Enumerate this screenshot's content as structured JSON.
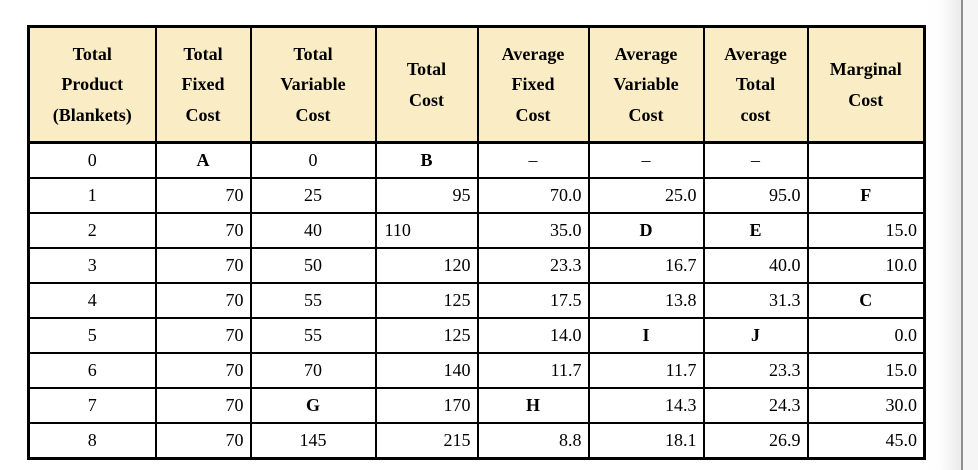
{
  "document": {
    "background": "#ffffff",
    "page_edge_line_color": "#8f8f8f",
    "page_edge_right_bg": "#f5f5f5"
  },
  "table": {
    "header_bg": "#FAEDC6",
    "border_color": "#000000",
    "text_color": "#000000",
    "columns": [
      {
        "id": "total-product-blankets",
        "lines": [
          "Total",
          "Product",
          "(Blankets)"
        ]
      },
      {
        "id": "total-fixed-cost",
        "lines": [
          "Total",
          "Fixed",
          "Cost"
        ]
      },
      {
        "id": "total-variable-cost",
        "lines": [
          "Total",
          "Variable",
          "Cost"
        ]
      },
      {
        "id": "total-cost",
        "lines": [
          "Total",
          "Cost"
        ]
      },
      {
        "id": "average-fixed-cost",
        "lines": [
          "Average",
          "Fixed",
          "Cost"
        ]
      },
      {
        "id": "average-variable-cost",
        "lines": [
          "Average",
          "Variable",
          "Cost"
        ]
      },
      {
        "id": "average-total-cost",
        "lines": [
          "Average",
          "Total",
          "cost"
        ]
      },
      {
        "id": "marginal-cost",
        "lines": [
          "Marginal",
          "Cost"
        ]
      }
    ],
    "rows": [
      [
        {
          "t": "0",
          "a": "c"
        },
        {
          "t": "A",
          "a": "c",
          "b": true
        },
        {
          "t": "0",
          "a": "c"
        },
        {
          "t": "B",
          "a": "c",
          "b": true
        },
        {
          "t": "–",
          "a": "c"
        },
        {
          "t": "–",
          "a": "c"
        },
        {
          "t": "–",
          "a": "c"
        },
        {
          "t": "",
          "a": "c"
        }
      ],
      [
        {
          "t": "1",
          "a": "c"
        },
        {
          "t": "70",
          "a": "r"
        },
        {
          "t": "25",
          "a": "c"
        },
        {
          "t": "95",
          "a": "r"
        },
        {
          "t": "70.0",
          "a": "r"
        },
        {
          "t": "25.0",
          "a": "r"
        },
        {
          "t": "95.0",
          "a": "r"
        },
        {
          "t": "F",
          "a": "c",
          "b": true
        }
      ],
      [
        {
          "t": "2",
          "a": "c"
        },
        {
          "t": "70",
          "a": "r"
        },
        {
          "t": "40",
          "a": "c"
        },
        {
          "t": "110",
          "a": "l"
        },
        {
          "t": "35.0",
          "a": "r"
        },
        {
          "t": "D",
          "a": "c",
          "b": true
        },
        {
          "t": "E",
          "a": "c",
          "b": true
        },
        {
          "t": "15.0",
          "a": "r"
        }
      ],
      [
        {
          "t": "3",
          "a": "c"
        },
        {
          "t": "70",
          "a": "r"
        },
        {
          "t": "50",
          "a": "c"
        },
        {
          "t": "120",
          "a": "r"
        },
        {
          "t": "23.3",
          "a": "r"
        },
        {
          "t": "16.7",
          "a": "r"
        },
        {
          "t": "40.0",
          "a": "r"
        },
        {
          "t": "10.0",
          "a": "r"
        }
      ],
      [
        {
          "t": "4",
          "a": "c"
        },
        {
          "t": "70",
          "a": "r"
        },
        {
          "t": "55",
          "a": "c"
        },
        {
          "t": "125",
          "a": "r"
        },
        {
          "t": "17.5",
          "a": "r"
        },
        {
          "t": "13.8",
          "a": "r"
        },
        {
          "t": "31.3",
          "a": "r"
        },
        {
          "t": "C",
          "a": "c",
          "b": true
        }
      ],
      [
        {
          "t": "5",
          "a": "c"
        },
        {
          "t": "70",
          "a": "r"
        },
        {
          "t": "55",
          "a": "c"
        },
        {
          "t": "125",
          "a": "r"
        },
        {
          "t": "14.0",
          "a": "r"
        },
        {
          "t": "I",
          "a": "c",
          "b": true
        },
        {
          "t": "J",
          "a": "c",
          "b": true
        },
        {
          "t": "0.0",
          "a": "r"
        }
      ],
      [
        {
          "t": "6",
          "a": "c"
        },
        {
          "t": "70",
          "a": "r"
        },
        {
          "t": "70",
          "a": "c"
        },
        {
          "t": "140",
          "a": "r"
        },
        {
          "t": "11.7",
          "a": "r"
        },
        {
          "t": "11.7",
          "a": "r"
        },
        {
          "t": "23.3",
          "a": "r"
        },
        {
          "t": "15.0",
          "a": "r"
        }
      ],
      [
        {
          "t": "7",
          "a": "c"
        },
        {
          "t": "70",
          "a": "r"
        },
        {
          "t": "G",
          "a": "c",
          "b": true
        },
        {
          "t": "170",
          "a": "r"
        },
        {
          "t": "H",
          "a": "c",
          "b": true
        },
        {
          "t": "14.3",
          "a": "r"
        },
        {
          "t": "24.3",
          "a": "r"
        },
        {
          "t": "30.0",
          "a": "r"
        }
      ],
      [
        {
          "t": "8",
          "a": "c"
        },
        {
          "t": "70",
          "a": "r"
        },
        {
          "t": "145",
          "a": "c"
        },
        {
          "t": "215",
          "a": "r"
        },
        {
          "t": "8.8",
          "a": "r"
        },
        {
          "t": "18.1",
          "a": "r"
        },
        {
          "t": "26.9",
          "a": "r"
        },
        {
          "t": "45.0",
          "a": "r"
        }
      ]
    ]
  }
}
